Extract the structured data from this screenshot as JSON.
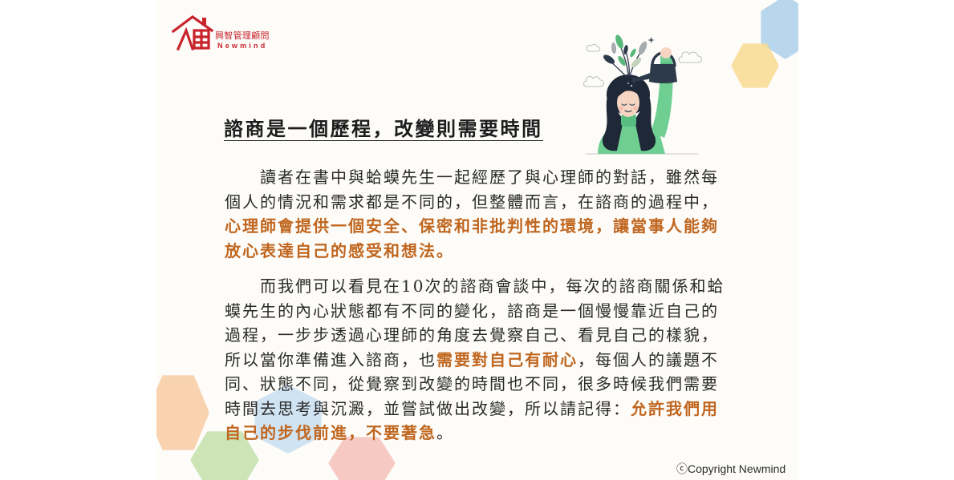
{
  "brand": {
    "name_zh": "興智管理顧問",
    "name_en": "Newmind",
    "logo_icon": "newmind-house-logo-icon"
  },
  "title": "諮商是一個歷程，改變則需要時間",
  "illustration": {
    "icon": "woman-watering-plants-on-head-icon"
  },
  "body": {
    "paragraphs": [
      {
        "lines": [
          {
            "segments": [
              {
                "text": "讀者在書中與蛤蟆先生一起經歷了與心理師的對話，雖然每",
                "emphasis": false
              }
            ]
          },
          {
            "segments": [
              {
                "text": "個人的情況和需求都是不同的，但整體而言，在諮商的過程中，",
                "emphasis": false
              }
            ]
          },
          {
            "segments": [
              {
                "text": "心理師會提供一個安全、保密和非批判性的環境，讓當事人能夠",
                "emphasis": true
              }
            ]
          },
          {
            "segments": [
              {
                "text": "放心表達自己的感受和想法。",
                "emphasis": true
              }
            ]
          }
        ]
      },
      {
        "lines": [
          {
            "segments": [
              {
                "text": "而我們可以看見在10次的諮商會談中，每次的諮商關係和蛤",
                "emphasis": false
              }
            ]
          },
          {
            "segments": [
              {
                "text": "蟆先生的內心狀態都有不同的變化，諮商是一個慢慢靠近自己的",
                "emphasis": false
              }
            ]
          },
          {
            "segments": [
              {
                "text": "過程，一步步透過心理師的角度去覺察自己、看見自己的樣貌，",
                "emphasis": false
              }
            ]
          },
          {
            "segments": [
              {
                "text": "所以當你準備進入諮商，也",
                "emphasis": false
              },
              {
                "text": "需要對自己有耐心",
                "emphasis": true
              },
              {
                "text": "，每個人的議題不",
                "emphasis": false
              }
            ]
          },
          {
            "segments": [
              {
                "text": "同、狀態不同，從覺察到改變的時間也不同，很多時候我們需要",
                "emphasis": false
              }
            ]
          },
          {
            "segments": [
              {
                "text": "時間去思考與沉澱，並嘗試做出改變，所以請記得：",
                "emphasis": false
              },
              {
                "text": "允許我們用",
                "emphasis": true
              }
            ]
          },
          {
            "segments": [
              {
                "text": "自己的步伐前進，不要著急",
                "emphasis": true
              },
              {
                "text": "。",
                "emphasis": false
              }
            ]
          }
        ]
      }
    ]
  },
  "copyright": "ⓒCopyright Newmind",
  "colors": {
    "brand": "#c8242c",
    "title": "#1c1c1c",
    "text": "#2a2a2a",
    "emphasis": "#c0661f",
    "card_background": "#fdfcf9",
    "sweater": "#6fcf93",
    "hair": "#1f2836"
  },
  "decor": {
    "hexagon_colors": [
      "#a9cdea",
      "#f8da8e",
      "#f8c9a0",
      "#c2dea8",
      "#c6ddf1",
      "#f5bfb8"
    ]
  }
}
